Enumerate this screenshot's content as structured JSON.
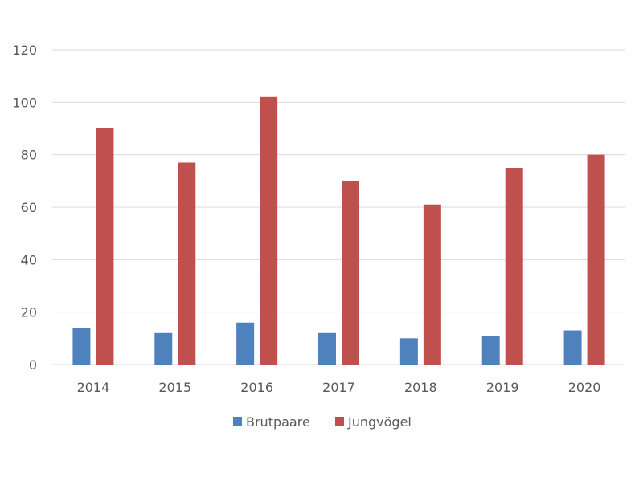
{
  "chart_data": {
    "type": "bar",
    "title": "",
    "xlabel": "",
    "ylabel": "",
    "categories": [
      "2014",
      "2015",
      "2016",
      "2017",
      "2018",
      "2019",
      "2020"
    ],
    "series": [
      {
        "name": "Brutpaare",
        "color": "#4f81bd",
        "values": [
          14,
          12,
          16,
          12,
          10,
          11,
          13
        ]
      },
      {
        "name": "Jungvögel",
        "color": "#c0504d",
        "values": [
          90,
          77,
          102,
          70,
          61,
          75,
          80
        ]
      }
    ],
    "ylim": [
      0,
      120
    ],
    "yticks": [
      0,
      20,
      40,
      60,
      80,
      100,
      120
    ],
    "grid": true,
    "legend_position": "bottom"
  }
}
